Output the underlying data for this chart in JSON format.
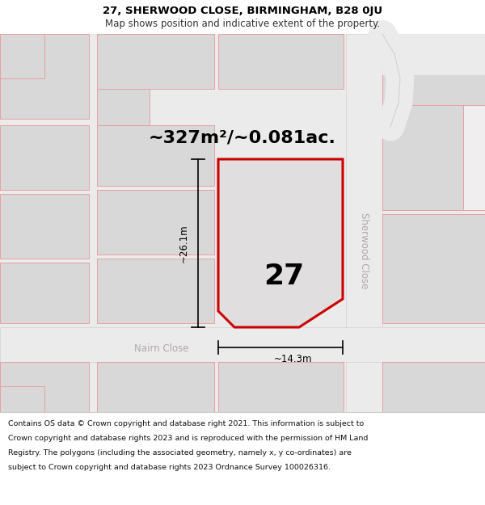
{
  "title": "27, SHERWOOD CLOSE, BIRMINGHAM, B28 0JU",
  "subtitle": "Map shows position and indicative extent of the property.",
  "area_text": "~327m²/~0.081ac.",
  "label_27": "27",
  "dim_height": "~26.1m",
  "dim_width": "~14.3m",
  "street_sherwood": "Sherwood Close",
  "street_nairn": "Nairn Close",
  "footer": "Contains OS data © Crown copyright and database right 2021. This information is subject to Crown copyright and database rights 2023 and is reproduced with the permission of HM Land Registry. The polygons (including the associated geometry, namely x, y co-ordinates) are subject to Crown copyright and database rights 2023 Ordnance Survey 100026316.",
  "bg_color": "#ebebeb",
  "block_color": "#d8d8d8",
  "block_dark": "#c8c8c8",
  "red_color": "#cc0000",
  "plot_fill": "#e0dede",
  "road_color": "#e8e6e6",
  "grid_line": "#e8a0a0",
  "white": "#ffffff",
  "title_bg": "#ffffff",
  "footer_bg": "#ffffff"
}
